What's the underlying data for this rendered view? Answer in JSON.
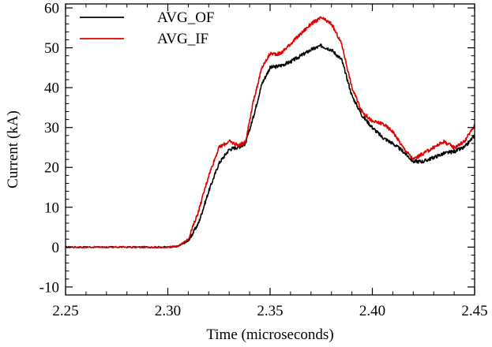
{
  "chart_data": {
    "type": "line",
    "xlabel": "Time (microseconds)",
    "ylabel": "Current (kA)",
    "xlim": [
      2.25,
      2.45
    ],
    "ylim": [
      -12,
      61
    ],
    "xticks": [
      2.25,
      2.3,
      2.35,
      2.4,
      2.45
    ],
    "xtick_labels": [
      "2.25",
      "2.30",
      "2.35",
      "2.40",
      "2.45"
    ],
    "yticks": [
      -10,
      0,
      10,
      20,
      30,
      40,
      50,
      60
    ],
    "ytick_labels": [
      "-10",
      "0",
      "10",
      "20",
      "30",
      "40",
      "50",
      "60"
    ],
    "grid": false,
    "legend_position": "top-left",
    "series": [
      {
        "name": "AVG_OF",
        "color": "#000000",
        "x": [
          2.25,
          2.26,
          2.27,
          2.28,
          2.29,
          2.3,
          2.305,
          2.31,
          2.315,
          2.32,
          2.325,
          2.33,
          2.335,
          2.338,
          2.342,
          2.346,
          2.35,
          2.355,
          2.36,
          2.365,
          2.37,
          2.375,
          2.38,
          2.385,
          2.39,
          2.395,
          2.4,
          2.405,
          2.41,
          2.415,
          2.42,
          2.425,
          2.43,
          2.435,
          2.44,
          2.445,
          2.45
        ],
        "y": [
          0,
          0,
          0,
          0,
          0,
          0,
          0.2,
          1.5,
          6,
          14,
          21,
          24.5,
          25.2,
          26,
          33,
          41,
          45,
          45.5,
          46.5,
          48,
          49.5,
          50.5,
          49.5,
          47,
          38,
          33,
          30,
          27.5,
          26,
          24,
          21.5,
          21.5,
          22.5,
          23.5,
          24,
          25,
          28
        ]
      },
      {
        "name": "AVG_IF",
        "color": "#e00000",
        "x": [
          2.25,
          2.26,
          2.27,
          2.28,
          2.29,
          2.3,
          2.305,
          2.31,
          2.315,
          2.32,
          2.325,
          2.33,
          2.335,
          2.338,
          2.342,
          2.346,
          2.35,
          2.355,
          2.36,
          2.365,
          2.37,
          2.375,
          2.38,
          2.385,
          2.39,
          2.395,
          2.4,
          2.405,
          2.41,
          2.415,
          2.42,
          2.425,
          2.43,
          2.435,
          2.44,
          2.445,
          2.45
        ],
        "y": [
          0,
          0,
          0,
          0,
          0,
          0,
          0.2,
          2,
          9,
          18,
          25,
          26.5,
          25.5,
          26.5,
          37,
          45,
          48.5,
          48.5,
          51,
          53.5,
          56,
          57.5,
          56,
          51,
          40,
          34,
          31.5,
          31,
          29,
          25,
          22,
          23.5,
          25,
          26.5,
          25,
          26.5,
          30.5
        ]
      }
    ]
  }
}
